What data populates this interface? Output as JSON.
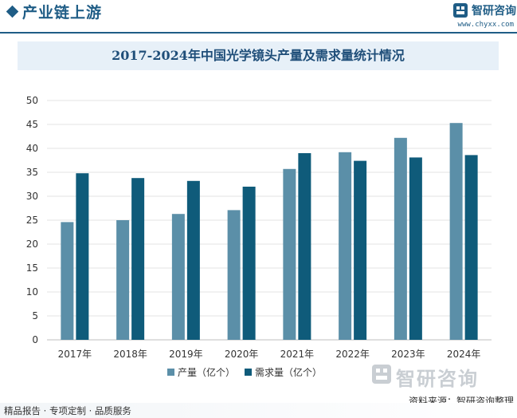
{
  "header": {
    "title": "产业链上游",
    "logo_name": "智研咨询",
    "logo_url": "www.chyxx.com"
  },
  "colors": {
    "brand": "#1f5d86",
    "production": "#5b8fa8",
    "demand": "#0f5b7a"
  },
  "chart_data": {
    "type": "bar",
    "title": "2017-2024年中国光学镜头产量及需求量统计情况",
    "categories": [
      "2017年",
      "2018年",
      "2019年",
      "2020年",
      "2021年",
      "2022年",
      "2023年",
      "2024年"
    ],
    "series": [
      {
        "name": "产量（亿个）",
        "color": "#5b8fa8",
        "values": [
          24.6,
          25.0,
          26.3,
          27.1,
          35.7,
          39.2,
          42.2,
          45.3
        ]
      },
      {
        "name": "需求量（亿个）",
        "color": "#0f5b7a",
        "values": [
          34.8,
          33.8,
          33.2,
          32.0,
          39.0,
          37.4,
          38.1,
          38.6
        ]
      }
    ],
    "xlabel": "",
    "ylabel": "",
    "ylim": [
      0,
      50
    ],
    "yticks": [
      0,
      5,
      10,
      15,
      20,
      25,
      30,
      35,
      40,
      45,
      50
    ],
    "grid": true,
    "legend": "bottom"
  },
  "watermark_name": "智研咨询",
  "source": "资料来源：智研咨询整理",
  "footer": "精品报告 · 专项定制 · 品质服务"
}
